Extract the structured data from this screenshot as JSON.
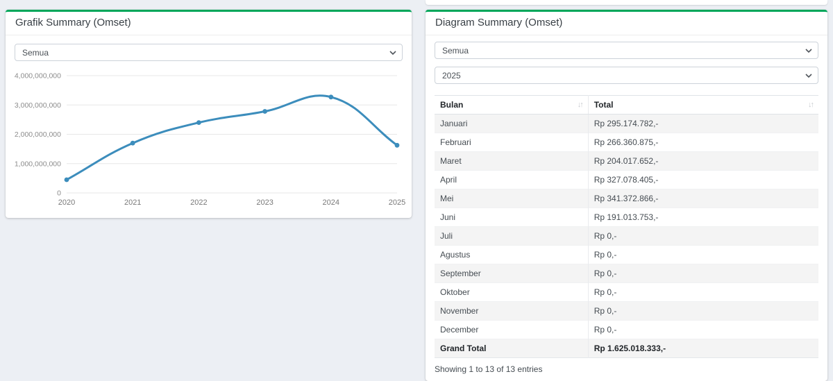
{
  "colors": {
    "accent_green": "#00a65a",
    "chart_line": "#3c8dbc",
    "background": "#eceff4"
  },
  "left_panel": {
    "title": "Grafik Summary (Omset)",
    "filter_value": "Semua"
  },
  "chart_data": {
    "type": "line",
    "title": "Grafik Summary (Omset)",
    "x": [
      "2020",
      "2021",
      "2022",
      "2023",
      "2024",
      "2025"
    ],
    "series": [
      {
        "name": "Omset",
        "values": [
          450000000,
          1700000000,
          2400000000,
          2780000000,
          3270000000,
          1625018333
        ]
      }
    ],
    "ylim": [
      0,
      4000000000
    ],
    "yticks": [
      0,
      1000000000,
      2000000000,
      3000000000,
      4000000000
    ],
    "grid": true,
    "smooth": true,
    "line_color": "#3c8dbc"
  },
  "right_panel": {
    "title": "Diagram Summary (Omset)",
    "filter1_value": "Semua",
    "filter2_value": "2025",
    "table": {
      "columns": [
        "Bulan",
        "Total"
      ],
      "sort_icon": "↓↑",
      "rows": [
        [
          "Januari",
          "Rp 295.174.782,-"
        ],
        [
          "Februari",
          "Rp 266.360.875,-"
        ],
        [
          "Maret",
          "Rp 204.017.652,-"
        ],
        [
          "April",
          "Rp 327.078.405,-"
        ],
        [
          "Mei",
          "Rp 341.372.866,-"
        ],
        [
          "Juni",
          "Rp 191.013.753,-"
        ],
        [
          "Juli",
          "Rp 0,-"
        ],
        [
          "Agustus",
          "Rp 0,-"
        ],
        [
          "September",
          "Rp 0,-"
        ],
        [
          "Oktober",
          "Rp 0,-"
        ],
        [
          "November",
          "Rp 0,-"
        ],
        [
          "December",
          "Rp 0,-"
        ]
      ],
      "total_row": [
        "Grand Total",
        "Rp 1.625.018.333,-"
      ],
      "info": "Showing 1 to 13 of 13 entries"
    }
  }
}
